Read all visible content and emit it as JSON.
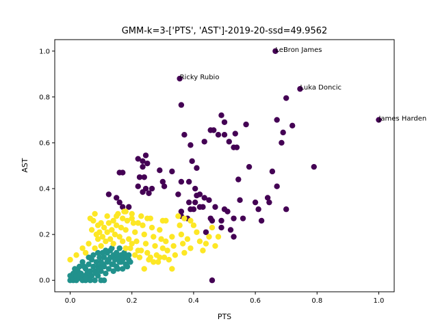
{
  "chart_data": {
    "type": "scatter",
    "title": "GMM-k=3-['PTS', 'AST']-2019-20-ssd=49.9562",
    "xlabel": "PTS",
    "ylabel": "AST",
    "xlim": [
      -0.05,
      1.05
    ],
    "ylim": [
      -0.05,
      1.05
    ],
    "xticks": [
      "0.0",
      "0.2",
      "0.4",
      "0.6",
      "0.8",
      "1.0"
    ],
    "yticks": [
      "0.0",
      "0.2",
      "0.4",
      "0.6",
      "0.8",
      "1.0"
    ],
    "grid": false,
    "colors": {
      "cluster_0": "#440154",
      "cluster_1": "#21918c",
      "cluster_2": "#fde725"
    },
    "annotations": [
      {
        "text": "LeBron James",
        "x": 0.665,
        "y": 1.0
      },
      {
        "text": "Ricky Rubio",
        "x": 0.355,
        "y": 0.88
      },
      {
        "text": "Luka Doncic",
        "x": 0.745,
        "y": 0.835
      },
      {
        "text": "James Harden",
        "x": 1.0,
        "y": 0.7
      }
    ],
    "series": [
      {
        "color": "#440154",
        "points": [
          [
            0.665,
            1.0
          ],
          [
            0.355,
            0.88
          ],
          [
            0.745,
            0.835
          ],
          [
            1.0,
            0.7
          ],
          [
            0.36,
            0.765
          ],
          [
            0.7,
            0.795
          ],
          [
            0.67,
            0.7
          ],
          [
            0.72,
            0.675
          ],
          [
            0.69,
            0.645
          ],
          [
            0.37,
            0.635
          ],
          [
            0.49,
            0.72
          ],
          [
            0.5,
            0.69
          ],
          [
            0.455,
            0.655
          ],
          [
            0.465,
            0.655
          ],
          [
            0.48,
            0.635
          ],
          [
            0.5,
            0.635
          ],
          [
            0.535,
            0.64
          ],
          [
            0.57,
            0.68
          ],
          [
            0.515,
            0.605
          ],
          [
            0.435,
            0.605
          ],
          [
            0.39,
            0.59
          ],
          [
            0.53,
            0.58
          ],
          [
            0.54,
            0.58
          ],
          [
            0.685,
            0.6
          ],
          [
            0.245,
            0.545
          ],
          [
            0.235,
            0.52
          ],
          [
            0.25,
            0.51
          ],
          [
            0.22,
            0.53
          ],
          [
            0.235,
            0.495
          ],
          [
            0.395,
            0.52
          ],
          [
            0.58,
            0.495
          ],
          [
            0.79,
            0.495
          ],
          [
            0.655,
            0.475
          ],
          [
            0.17,
            0.47
          ],
          [
            0.16,
            0.47
          ],
          [
            0.41,
            0.49
          ],
          [
            0.33,
            0.475
          ],
          [
            0.29,
            0.48
          ],
          [
            0.36,
            0.43
          ],
          [
            0.385,
            0.43
          ],
          [
            0.225,
            0.45
          ],
          [
            0.24,
            0.45
          ],
          [
            0.545,
            0.44
          ],
          [
            0.22,
            0.41
          ],
          [
            0.245,
            0.4
          ],
          [
            0.3,
            0.43
          ],
          [
            0.305,
            0.41
          ],
          [
            0.265,
            0.4
          ],
          [
            0.235,
            0.385
          ],
          [
            0.255,
            0.38
          ],
          [
            0.405,
            0.4
          ],
          [
            0.41,
            0.37
          ],
          [
            0.42,
            0.375
          ],
          [
            0.125,
            0.375
          ],
          [
            0.67,
            0.41
          ],
          [
            0.35,
            0.375
          ],
          [
            0.435,
            0.36
          ],
          [
            0.405,
            0.34
          ],
          [
            0.15,
            0.36
          ],
          [
            0.16,
            0.34
          ],
          [
            0.385,
            0.34
          ],
          [
            0.45,
            0.35
          ],
          [
            0.55,
            0.35
          ],
          [
            0.64,
            0.36
          ],
          [
            0.645,
            0.34
          ],
          [
            0.6,
            0.34
          ],
          [
            0.39,
            0.31
          ],
          [
            0.4,
            0.31
          ],
          [
            0.42,
            0.32
          ],
          [
            0.43,
            0.32
          ],
          [
            0.47,
            0.32
          ],
          [
            0.17,
            0.32
          ],
          [
            0.19,
            0.32
          ],
          [
            0.36,
            0.3
          ],
          [
            0.5,
            0.31
          ],
          [
            0.61,
            0.31
          ],
          [
            0.7,
            0.31
          ],
          [
            0.51,
            0.3
          ],
          [
            0.38,
            0.27
          ],
          [
            0.36,
            0.28
          ],
          [
            0.455,
            0.27
          ],
          [
            0.46,
            0.26
          ],
          [
            0.49,
            0.26
          ],
          [
            0.53,
            0.27
          ],
          [
            0.56,
            0.27
          ],
          [
            0.62,
            0.26
          ],
          [
            0.49,
            0.23
          ],
          [
            0.52,
            0.22
          ],
          [
            0.53,
            0.19
          ],
          [
            0.44,
            0.21
          ],
          [
            0.46,
            0.0
          ]
        ]
      },
      {
        "color": "#21918c",
        "points": [
          [
            0.0,
            0.0
          ],
          [
            0.0,
            0.02
          ],
          [
            0.005,
            0.01
          ],
          [
            0.01,
            0.0
          ],
          [
            0.01,
            0.03
          ],
          [
            0.015,
            0.05
          ],
          [
            0.02,
            0.0
          ],
          [
            0.02,
            0.02
          ],
          [
            0.025,
            0.04
          ],
          [
            0.03,
            0.01
          ],
          [
            0.03,
            0.06
          ],
          [
            0.035,
            0.03
          ],
          [
            0.04,
            0.0
          ],
          [
            0.04,
            0.08
          ],
          [
            0.045,
            0.02
          ],
          [
            0.05,
            0.05
          ],
          [
            0.05,
            0.0
          ],
          [
            0.055,
            0.03
          ],
          [
            0.06,
            0.07
          ],
          [
            0.06,
            0.01
          ],
          [
            0.065,
            0.04
          ],
          [
            0.07,
            0.09
          ],
          [
            0.07,
            0.02
          ],
          [
            0.075,
            0.06
          ],
          [
            0.08,
            0.0
          ],
          [
            0.08,
            0.04
          ],
          [
            0.085,
            0.08
          ],
          [
            0.09,
            0.02
          ],
          [
            0.09,
            0.06
          ],
          [
            0.095,
            0.1
          ],
          [
            0.1,
            0.04
          ],
          [
            0.1,
            0.08
          ],
          [
            0.105,
            0.12
          ],
          [
            0.11,
            0.06
          ],
          [
            0.11,
            0.1
          ],
          [
            0.115,
            0.03
          ],
          [
            0.12,
            0.08
          ],
          [
            0.12,
            0.12
          ],
          [
            0.125,
            0.05
          ],
          [
            0.13,
            0.1
          ],
          [
            0.13,
            0.13
          ],
          [
            0.135,
            0.07
          ],
          [
            0.14,
            0.11
          ],
          [
            0.14,
            0.04
          ],
          [
            0.145,
            0.09
          ],
          [
            0.15,
            0.12
          ],
          [
            0.15,
            0.06
          ],
          [
            0.155,
            0.1
          ],
          [
            0.16,
            0.08
          ],
          [
            0.165,
            0.11
          ],
          [
            0.17,
            0.05
          ],
          [
            0.17,
            0.09
          ],
          [
            0.175,
            0.12
          ],
          [
            0.18,
            0.07
          ],
          [
            0.18,
            0.1
          ],
          [
            0.185,
            0.06
          ],
          [
            0.19,
            0.09
          ],
          [
            0.19,
            0.11
          ],
          [
            0.195,
            0.08
          ],
          [
            0.1,
            0.0
          ],
          [
            0.11,
            0.0
          ],
          [
            0.03,
            0.03
          ],
          [
            0.045,
            0.06
          ],
          [
            0.06,
            0.1
          ],
          [
            0.075,
            0.11
          ],
          [
            0.09,
            0.12
          ],
          [
            0.115,
            0.13
          ],
          [
            0.135,
            0.14
          ],
          [
            0.16,
            0.14
          ],
          [
            0.05,
            0.01
          ],
          [
            0.065,
            0.0
          ],
          [
            0.085,
            0.03
          ],
          [
            0.095,
            0.05
          ],
          [
            0.105,
            0.07
          ],
          [
            0.125,
            0.09
          ],
          [
            0.14,
            0.07
          ],
          [
            0.155,
            0.05
          ],
          [
            0.165,
            0.08
          ]
        ]
      },
      {
        "color": "#fde725",
        "points": [
          [
            0.0,
            0.09
          ],
          [
            0.02,
            0.11
          ],
          [
            0.04,
            0.14
          ],
          [
            0.05,
            0.12
          ],
          [
            0.06,
            0.16
          ],
          [
            0.065,
            0.27
          ],
          [
            0.075,
            0.26
          ],
          [
            0.08,
            0.29
          ],
          [
            0.085,
            0.2
          ],
          [
            0.09,
            0.18
          ],
          [
            0.095,
            0.21
          ],
          [
            0.1,
            0.15
          ],
          [
            0.105,
            0.19
          ],
          [
            0.11,
            0.23
          ],
          [
            0.115,
            0.17
          ],
          [
            0.12,
            0.21
          ],
          [
            0.125,
            0.25
          ],
          [
            0.13,
            0.18
          ],
          [
            0.135,
            0.22
          ],
          [
            0.14,
            0.16
          ],
          [
            0.145,
            0.2
          ],
          [
            0.15,
            0.24
          ],
          [
            0.155,
            0.29
          ],
          [
            0.16,
            0.19
          ],
          [
            0.165,
            0.23
          ],
          [
            0.17,
            0.27
          ],
          [
            0.175,
            0.3
          ],
          [
            0.18,
            0.22
          ],
          [
            0.185,
            0.26
          ],
          [
            0.19,
            0.18
          ],
          [
            0.195,
            0.14
          ],
          [
            0.2,
            0.29
          ],
          [
            0.205,
            0.25
          ],
          [
            0.21,
            0.21
          ],
          [
            0.215,
            0.17
          ],
          [
            0.22,
            0.13
          ],
          [
            0.225,
            0.1
          ],
          [
            0.23,
            0.28
          ],
          [
            0.235,
            0.24
          ],
          [
            0.24,
            0.2
          ],
          [
            0.245,
            0.16
          ],
          [
            0.25,
            0.12
          ],
          [
            0.255,
            0.09
          ],
          [
            0.26,
            0.27
          ],
          [
            0.265,
            0.23
          ],
          [
            0.27,
            0.19
          ],
          [
            0.275,
            0.15
          ],
          [
            0.28,
            0.11
          ],
          [
            0.285,
            0.08
          ],
          [
            0.29,
            0.22
          ],
          [
            0.295,
            0.18
          ],
          [
            0.3,
            0.14
          ],
          [
            0.305,
            0.1
          ],
          [
            0.31,
            0.17
          ],
          [
            0.315,
            0.13
          ],
          [
            0.32,
            0.09
          ],
          [
            0.33,
            0.19
          ],
          [
            0.335,
            0.15
          ],
          [
            0.34,
            0.11
          ],
          [
            0.35,
            0.28
          ],
          [
            0.355,
            0.24
          ],
          [
            0.36,
            0.2
          ],
          [
            0.365,
            0.16
          ],
          [
            0.37,
            0.12
          ],
          [
            0.38,
            0.18
          ],
          [
            0.39,
            0.14
          ],
          [
            0.4,
            0.24
          ],
          [
            0.41,
            0.21
          ],
          [
            0.42,
            0.17
          ],
          [
            0.43,
            0.13
          ],
          [
            0.44,
            0.16
          ],
          [
            0.45,
            0.19
          ],
          [
            0.46,
            0.23
          ],
          [
            0.47,
            0.15
          ],
          [
            0.48,
            0.19
          ],
          [
            0.3,
            0.26
          ],
          [
            0.25,
            0.27
          ],
          [
            0.2,
            0.27
          ],
          [
            0.15,
            0.28
          ],
          [
            0.12,
            0.28
          ],
          [
            0.24,
            0.05
          ],
          [
            0.33,
            0.05
          ],
          [
            0.27,
            0.08
          ],
          [
            0.1,
            0.25
          ],
          [
            0.09,
            0.24
          ],
          [
            0.08,
            0.14
          ],
          [
            0.07,
            0.22
          ],
          [
            0.14,
            0.26
          ],
          [
            0.18,
            0.3
          ],
          [
            0.22,
            0.25
          ],
          [
            0.26,
            0.1
          ],
          [
            0.29,
            0.1
          ],
          [
            0.31,
            0.26
          ],
          [
            0.37,
            0.27
          ],
          [
            0.39,
            0.26
          ],
          [
            0.18,
            0.14
          ],
          [
            0.2,
            0.16
          ],
          [
            0.23,
            0.13
          ],
          [
            0.21,
            0.11
          ],
          [
            0.17,
            0.17
          ]
        ]
      }
    ]
  }
}
